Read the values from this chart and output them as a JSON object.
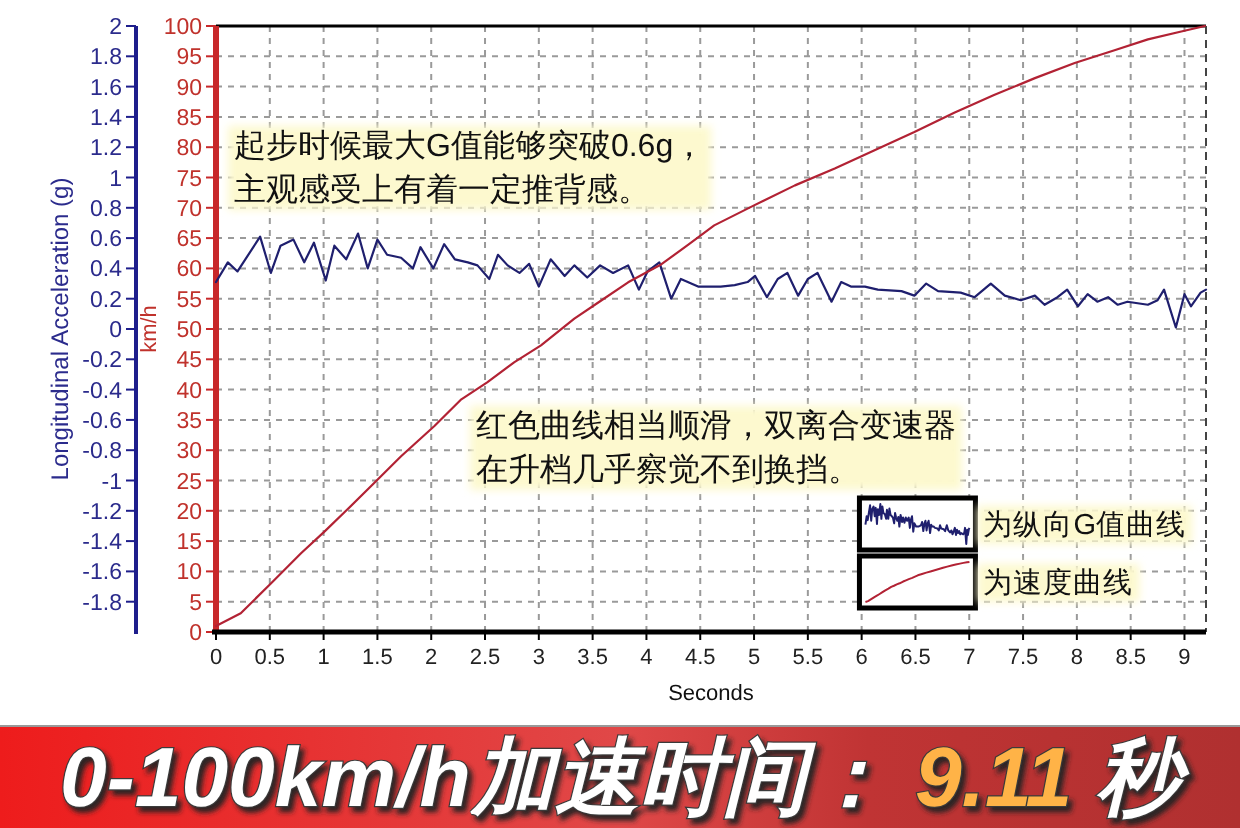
{
  "chart_data": {
    "type": "line",
    "title": "0-100km/h加速时间：9.11 秒",
    "xlabel": "Seconds",
    "ylabel": "Longitudinal Acceleration (g)",
    "y2label": "km/h",
    "annotations": [
      "起步时候最大G值能够突破0.6g，主观感受上有着一定推背感。",
      "红色曲线相当顺滑，双离合变速器在升档几乎察觉不到换挡。"
    ],
    "xlim": [
      0,
      9.2
    ],
    "xticks": [
      0,
      0.5,
      1,
      1.5,
      2,
      2.5,
      3,
      3.5,
      4,
      4.5,
      5,
      5.5,
      6,
      6.5,
      7,
      7.5,
      8,
      8.5,
      9
    ],
    "ylim": [
      -2,
      2
    ],
    "yticks": [
      2,
      1.8,
      1.6,
      1.4,
      1.2,
      1,
      0.8,
      0.6,
      0.4,
      0.2,
      0,
      -0.2,
      -0.4,
      -0.6,
      -0.8,
      -1,
      -1.2,
      -1.4,
      -1.6,
      -1.8
    ],
    "y2lim": [
      0,
      100
    ],
    "y2ticks": [
      0,
      5,
      10,
      15,
      20,
      25,
      30,
      35,
      40,
      45,
      50,
      55,
      60,
      65,
      70,
      75,
      80,
      85,
      90,
      95,
      100
    ],
    "grid": true,
    "legend": "bottom right",
    "series": [
      {
        "name": "为纵向G值曲线",
        "color": "#1f1f6e",
        "x": [
          0,
          0.11,
          0.2,
          0.41,
          0.51,
          0.6,
          0.72,
          0.82,
          0.91,
          1.02,
          1.1,
          1.21,
          1.32,
          1.41,
          1.5,
          1.59,
          1.72,
          1.83,
          1.9,
          2.02,
          2.12,
          2.22,
          2.34,
          2.43,
          2.54,
          2.62,
          2.71,
          2.82,
          2.91,
          3.0,
          3.11,
          3.24,
          3.33,
          3.45,
          3.57,
          3.69,
          3.83,
          3.93,
          4.01,
          4.12,
          4.23,
          4.32,
          4.48,
          4.69,
          4.82,
          4.94,
          5.01,
          5.12,
          5.22,
          5.31,
          5.41,
          5.5,
          5.59,
          5.72,
          5.81,
          5.9,
          6.03,
          6.15,
          6.37,
          6.49,
          6.6,
          6.71,
          6.92,
          7.05,
          7.2,
          7.33,
          7.48,
          7.61,
          7.7,
          7.82,
          7.91,
          8.01,
          8.1,
          8.19,
          8.29,
          8.38,
          8.47,
          8.66,
          8.75,
          8.81,
          8.92,
          9.0,
          9.06,
          9.15,
          9.2
        ],
        "values": [
          0.31,
          0.44,
          0.38,
          0.61,
          0.37,
          0.55,
          0.59,
          0.44,
          0.57,
          0.32,
          0.55,
          0.46,
          0.63,
          0.4,
          0.59,
          0.49,
          0.47,
          0.4,
          0.54,
          0.4,
          0.56,
          0.46,
          0.44,
          0.42,
          0.33,
          0.49,
          0.42,
          0.37,
          0.43,
          0.28,
          0.46,
          0.35,
          0.42,
          0.34,
          0.42,
          0.37,
          0.42,
          0.26,
          0.38,
          0.44,
          0.2,
          0.33,
          0.28,
          0.28,
          0.29,
          0.31,
          0.35,
          0.21,
          0.33,
          0.37,
          0.22,
          0.33,
          0.37,
          0.18,
          0.31,
          0.28,
          0.28,
          0.26,
          0.25,
          0.22,
          0.3,
          0.25,
          0.24,
          0.21,
          0.3,
          0.22,
          0.19,
          0.22,
          0.16,
          0.21,
          0.26,
          0.15,
          0.23,
          0.18,
          0.21,
          0.16,
          0.18,
          0.16,
          0.19,
          0.26,
          0.01,
          0.23,
          0.15,
          0.24,
          0.26
        ]
      },
      {
        "name": "为速度曲线",
        "color": "#b22234",
        "axis": "y2",
        "x": [
          0,
          0.23,
          0.51,
          0.79,
          1.01,
          1.22,
          1.47,
          1.72,
          2.03,
          2.28,
          2.52,
          2.77,
          3.02,
          3.33,
          3.58,
          3.83,
          4.14,
          4.38,
          4.63,
          5.0,
          5.38,
          5.75,
          6.12,
          6.49,
          6.86,
          7.23,
          7.61,
          7.98,
          8.35,
          8.66,
          8.97,
          9.19
        ],
        "values": [
          1,
          3.1,
          8,
          13,
          16.6,
          20.2,
          24.6,
          29,
          34,
          38.4,
          41.2,
          44.5,
          47.3,
          51.7,
          54.7,
          57.7,
          60.7,
          63.8,
          67.1,
          70.4,
          73.7,
          76.5,
          79.5,
          82.5,
          85.7,
          88.6,
          91.4,
          93.9,
          96,
          97.8,
          99.1,
          100
        ]
      }
    ]
  }
}
